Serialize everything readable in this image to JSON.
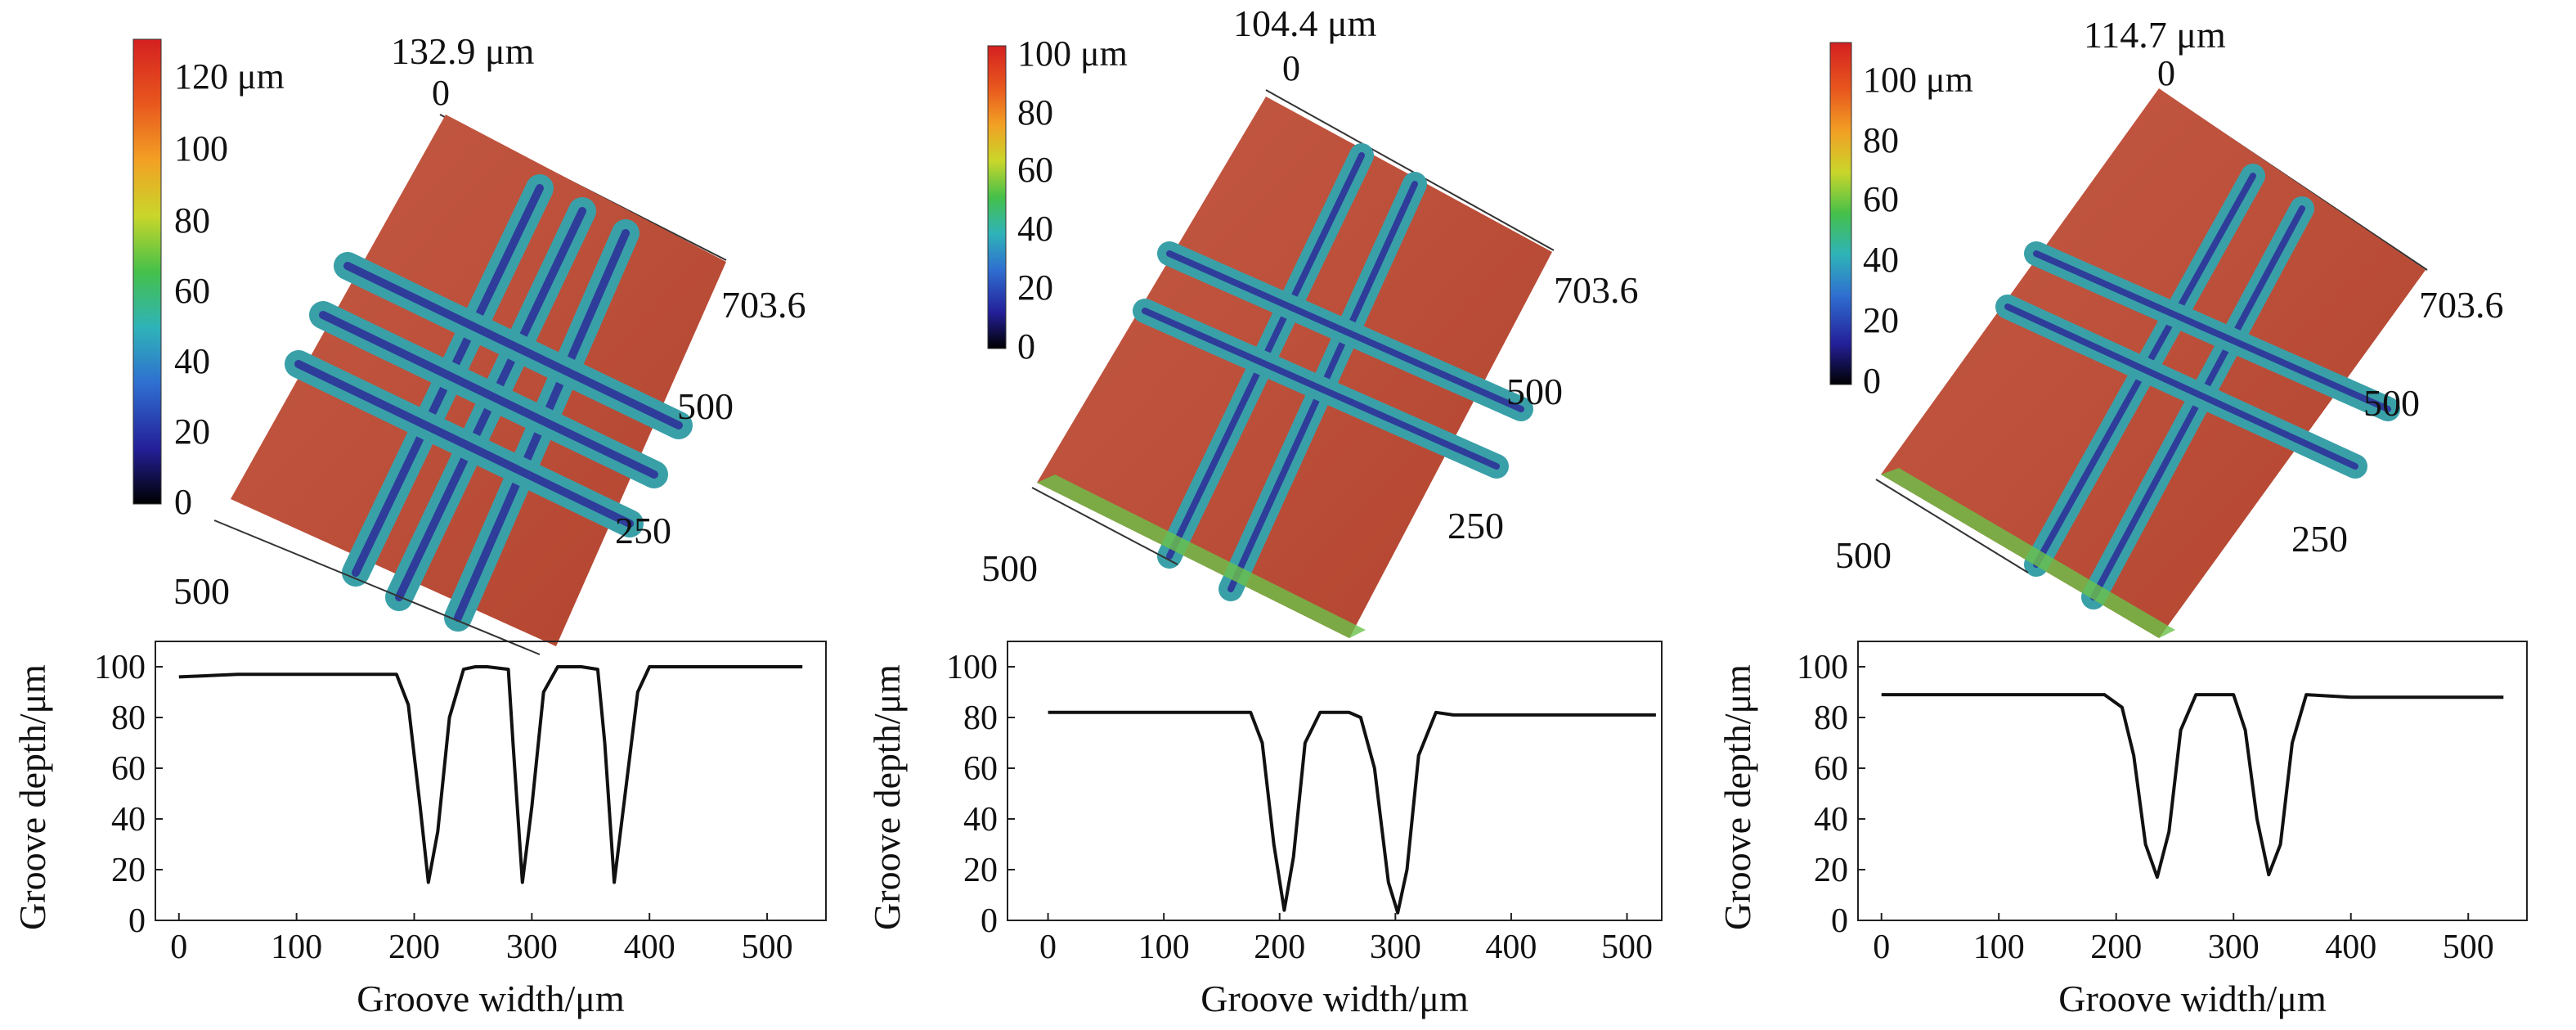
{
  "colors": {
    "surface": "#c0503e",
    "surface_dark": "#a73c2f",
    "groove_mid": "#3aa0a8",
    "groove_low": "#2e3d9a",
    "groove_edge": "#6cc24a",
    "line": "#111111",
    "colorbar": [
      "#000000",
      "#24209a",
      "#2f6fd0",
      "#2fb3b8",
      "#45c04a",
      "#c9d62a",
      "#f2a024",
      "#e8581e",
      "#d42020"
    ]
  },
  "chart_data": [
    {
      "type": "surface3d",
      "id": "p1",
      "max_label": "132.9 μm",
      "origin_label": "0",
      "colorbar": {
        "ticks": [
          "120 μm",
          "100",
          "80",
          "60",
          "40",
          "20",
          "0"
        ],
        "ticks_values": [
          120,
          100,
          80,
          60,
          40,
          20,
          0
        ]
      },
      "axis_right": [
        "703.6",
        "500",
        "250"
      ],
      "axis_left": [
        "500"
      ],
      "grooves": 3
    },
    {
      "type": "surface3d",
      "id": "p2",
      "max_label": "104.4 μm",
      "origin_label": "0",
      "colorbar": {
        "ticks": [
          "100 μm",
          "80",
          "60",
          "40",
          "20",
          "0"
        ],
        "ticks_values": [
          100,
          80,
          60,
          40,
          20,
          0
        ]
      },
      "axis_right": [
        "703.6",
        "500",
        "250"
      ],
      "axis_left": [
        "500"
      ],
      "grooves": 2
    },
    {
      "type": "surface3d",
      "id": "p3",
      "max_label": "114.7 μm",
      "origin_label": "0",
      "colorbar": {
        "ticks": [
          "100 μm",
          "80",
          "60",
          "40",
          "20",
          "0"
        ],
        "ticks_values": [
          100,
          80,
          60,
          40,
          20,
          0
        ]
      },
      "axis_right": [
        "703.6",
        "500",
        "250"
      ],
      "axis_left": [
        "500"
      ],
      "grooves": 2
    },
    {
      "type": "line",
      "id": "l1",
      "xlabel": "Groove width/μm",
      "ylabel": "Groove depth/μm",
      "xlim": [
        -20,
        550
      ],
      "ylim": [
        0,
        110
      ],
      "xticks": [
        0,
        100,
        200,
        300,
        400,
        500
      ],
      "yticks": [
        0,
        20,
        40,
        60,
        80,
        100
      ],
      "x": [
        0,
        50,
        100,
        150,
        185,
        195,
        205,
        212,
        220,
        230,
        242,
        252,
        262,
        280,
        284,
        292,
        300,
        310,
        322,
        332,
        342,
        356,
        362,
        370,
        378,
        390,
        400,
        450,
        500,
        530
      ],
      "y": [
        96,
        97,
        97,
        97,
        97,
        85,
        45,
        15,
        35,
        80,
        99,
        100,
        100,
        99,
        70,
        15,
        45,
        90,
        100,
        100,
        100,
        99,
        70,
        15,
        45,
        90,
        100,
        100,
        100,
        100
      ]
    },
    {
      "type": "line",
      "id": "l2",
      "xlabel": "Groove width/μm",
      "ylabel": "Groove depth/μm",
      "xlim": [
        -35,
        530
      ],
      "ylim": [
        0,
        110
      ],
      "xticks": [
        0,
        100,
        200,
        300,
        400,
        500
      ],
      "yticks": [
        0,
        20,
        40,
        60,
        80,
        100
      ],
      "x": [
        0,
        50,
        100,
        150,
        175,
        185,
        195,
        204,
        212,
        222,
        235,
        260,
        270,
        282,
        294,
        302,
        310,
        320,
        335,
        350,
        400,
        450,
        500,
        525
      ],
      "y": [
        82,
        82,
        82,
        82,
        82,
        70,
        30,
        4,
        25,
        70,
        82,
        82,
        80,
        60,
        15,
        3,
        20,
        65,
        82,
        81,
        81,
        81,
        81,
        81
      ]
    },
    {
      "type": "line",
      "id": "l3",
      "xlabel": "Groove width/μm",
      "ylabel": "Groove depth/μm",
      "xlim": [
        -20,
        550
      ],
      "ylim": [
        0,
        110
      ],
      "xticks": [
        0,
        100,
        200,
        300,
        400,
        500
      ],
      "yticks": [
        0,
        20,
        40,
        60,
        80,
        100
      ],
      "x": [
        0,
        50,
        100,
        150,
        190,
        205,
        215,
        225,
        235,
        245,
        255,
        268,
        280,
        300,
        310,
        320,
        330,
        340,
        350,
        362,
        400,
        450,
        500,
        530
      ],
      "y": [
        89,
        89,
        89,
        89,
        89,
        84,
        65,
        30,
        17,
        35,
        75,
        89,
        89,
        89,
        75,
        40,
        18,
        30,
        70,
        89,
        88,
        88,
        88,
        88
      ]
    }
  ]
}
